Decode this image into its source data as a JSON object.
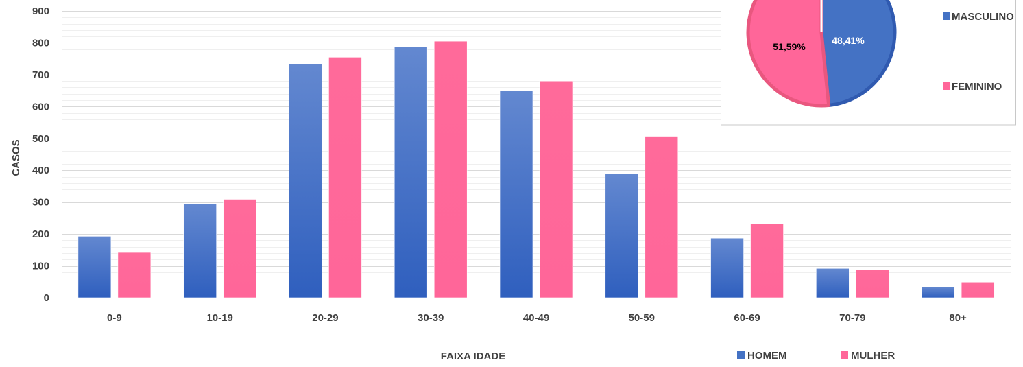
{
  "chart_data": [
    {
      "type": "bar",
      "xlabel": "FAIXA IDADE",
      "ylabel": "CASOS",
      "ylim": [
        0,
        900
      ],
      "yticks": [
        0,
        100,
        200,
        300,
        400,
        500,
        600,
        700,
        800,
        900
      ],
      "grid": true,
      "legend_position": "bottom-right",
      "categories": [
        "0-9",
        "10-19",
        "20-29",
        "30-39",
        "40-49",
        "50-59",
        "60-69",
        "70-79",
        "80+"
      ],
      "series": [
        {
          "name": "HOMEM",
          "color": "#4472C4",
          "values": [
            193,
            294,
            733,
            787,
            649,
            389,
            187,
            92,
            34
          ]
        },
        {
          "name": "MULHER",
          "color": "#FF6699",
          "values": [
            142,
            309,
            755,
            805,
            680,
            507,
            233,
            87,
            49
          ]
        }
      ]
    },
    {
      "type": "pie",
      "legend_position": "right",
      "slices": [
        {
          "name": "MASCULINO",
          "value": 48.41,
          "label": "48,41%",
          "color": "#4472C4"
        },
        {
          "name": "FEMININO",
          "value": 51.59,
          "label": "51,59%",
          "color": "#FF6699"
        }
      ]
    }
  ]
}
